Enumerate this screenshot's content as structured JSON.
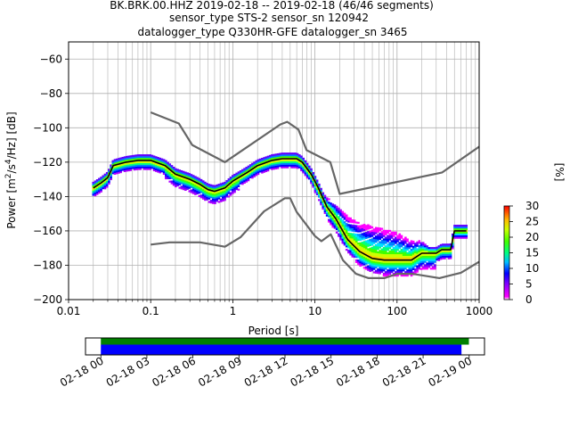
{
  "title": {
    "line1": "BK.BRK.00.HHZ   2019-02-18 -- 2019-02-18  (46/46 segments)",
    "line2": "sensor_type STS-2 sensor_sn 120942",
    "line3": "datalogger_type Q330HR-GFE datalogger_sn 3465"
  },
  "chart_data": [
    {
      "type": "line",
      "plot": "ppsd",
      "xlabel": "Period [s]",
      "ylabel": "Power [m²/s⁴/Hz] [dB]",
      "xscale": "log",
      "xlim": [
        0.01,
        1000
      ],
      "ylim": [
        -200,
        -50
      ],
      "xticks": [
        0.01,
        0.1,
        1,
        10,
        100,
        1000
      ],
      "xtick_labels": [
        "0.01",
        "0.1",
        "1",
        "10",
        "100",
        "1000"
      ],
      "yticks": [
        -200,
        -180,
        -160,
        -140,
        -120,
        -100,
        -80,
        -60
      ],
      "ytick_labels": [
        "−200",
        "−180",
        "−160",
        "−140",
        "−120",
        "−100",
        "−80",
        "−60"
      ],
      "grid": true,
      "series": [
        {
          "key": "nhnm",
          "color": "#666666",
          "points": [
            [
              0.1,
              -91
            ],
            [
              0.22,
              -97.5
            ],
            [
              0.32,
              -110
            ],
            [
              0.8,
              -120
            ],
            [
              3.8,
              -98
            ],
            [
              4.6,
              -96.5
            ],
            [
              6.3,
              -101
            ],
            [
              7.9,
              -113
            ],
            [
              15.4,
              -120
            ],
            [
              20,
              -138.5
            ],
            [
              354.8,
              -126
            ],
            [
              1000,
              -111
            ]
          ]
        },
        {
          "key": "nlnm",
          "color": "#666666",
          "points": [
            [
              0.1,
              -168
            ],
            [
              0.17,
              -166.7
            ],
            [
              0.4,
              -166.7
            ],
            [
              0.8,
              -169.2
            ],
            [
              1.24,
              -163.7
            ],
            [
              2.4,
              -148.6
            ],
            [
              4.3,
              -141
            ],
            [
              5,
              -141
            ],
            [
              6,
              -149
            ],
            [
              10,
              -163
            ],
            [
              12,
              -166
            ],
            [
              15.6,
              -162
            ],
            [
              21.9,
              -177
            ],
            [
              31.6,
              -185
            ],
            [
              45,
              -187.5
            ],
            [
              70,
              -187.5
            ],
            [
              101,
              -185
            ],
            [
              154,
              -185
            ],
            [
              328,
              -187.5
            ],
            [
              600,
              -184.4
            ],
            [
              1000,
              -178
            ]
          ]
        },
        {
          "key": "mode",
          "color": "#000000",
          "points": [
            [
              0.02,
              -135
            ],
            [
              0.025,
              -132
            ],
            [
              0.03,
              -129
            ],
            [
              0.035,
              -122
            ],
            [
              0.05,
              -120
            ],
            [
              0.07,
              -119
            ],
            [
              0.1,
              -119
            ],
            [
              0.15,
              -122
            ],
            [
              0.2,
              -127
            ],
            [
              0.3,
              -130
            ],
            [
              0.4,
              -133
            ],
            [
              0.5,
              -136
            ],
            [
              0.6,
              -137
            ],
            [
              0.8,
              -135
            ],
            [
              1.0,
              -131
            ],
            [
              1.5,
              -126
            ],
            [
              2.0,
              -122
            ],
            [
              3.0,
              -119
            ],
            [
              4.0,
              -118
            ],
            [
              6.0,
              -118
            ],
            [
              7.0,
              -120
            ],
            [
              9.0,
              -127
            ],
            [
              11,
              -135
            ],
            [
              14,
              -146
            ],
            [
              18,
              -153
            ],
            [
              25,
              -165
            ],
            [
              35,
              -172
            ],
            [
              50,
              -176
            ],
            [
              70,
              -177
            ],
            [
              100,
              -177
            ],
            [
              150,
              -177
            ],
            [
              200,
              -173
            ],
            [
              300,
              -173
            ],
            [
              350,
              -171
            ],
            [
              450,
              -171
            ],
            [
              500,
              -160
            ],
            [
              700,
              -160
            ]
          ]
        }
      ],
      "density_colorbar": {
        "label": "[%]",
        "range": [
          0,
          30
        ],
        "ticks": [
          0,
          5,
          10,
          15,
          20,
          25,
          30
        ]
      }
    },
    {
      "type": "timeline",
      "plot": "data_coverage",
      "xlim": [
        "2019-02-17 23:00",
        "2019-02-19 01:00"
      ],
      "xtick_labels": [
        "02-18 00",
        "02-18 03",
        "02-18 06",
        "02-18 09",
        "02-18 12",
        "02-18 15",
        "02-18 18",
        "02-18 21",
        "02-19 00"
      ],
      "bars": [
        {
          "key": "data",
          "color": "#008000",
          "start": "2019-02-18 00:00",
          "end": "2019-02-18 23:59"
        },
        {
          "key": "ppsd_segments",
          "color": "#0000ff",
          "start": "2019-02-18 00:00",
          "end": "2019-02-18 23:30"
        }
      ]
    }
  ]
}
